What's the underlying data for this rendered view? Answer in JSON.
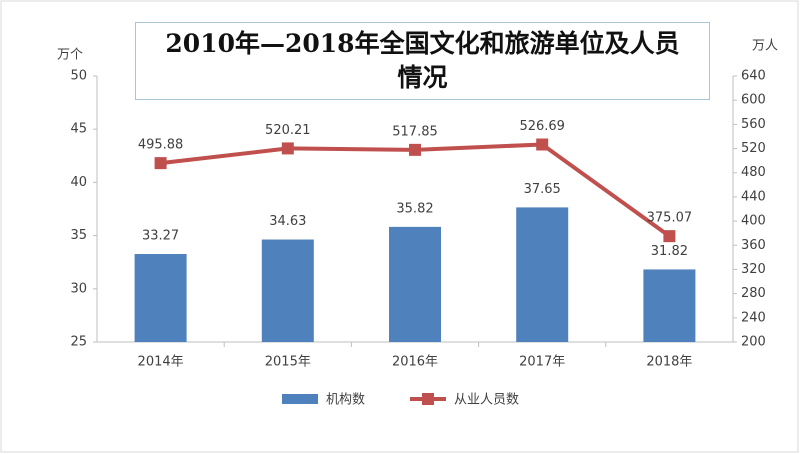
{
  "chart_data": {
    "type": "bar",
    "title": "2010年—2018年全国文化和旅游单位及人员情况",
    "ylabel": "万个",
    "y2label": "万人",
    "categories": [
      "2014年",
      "2015年",
      "2016年",
      "2017年",
      "2018年"
    ],
    "series": [
      {
        "name": "机构数",
        "type": "bar",
        "color": "#4f81bd",
        "values": [
          33.27,
          34.63,
          35.82,
          37.65,
          31.82
        ]
      },
      {
        "name": "从业人员数",
        "type": "line",
        "color": "#c0504d",
        "axis": "y2",
        "values": [
          495.88,
          520.21,
          517.85,
          526.69,
          375.07
        ]
      }
    ],
    "ylim": [
      25,
      50
    ],
    "yticks": [
      25,
      30,
      35,
      40,
      45,
      50
    ],
    "y2lim": [
      200,
      640
    ],
    "y2ticks": [
      200,
      240,
      280,
      320,
      360,
      400,
      440,
      480,
      520,
      560,
      600,
      640
    ],
    "grid": false
  }
}
